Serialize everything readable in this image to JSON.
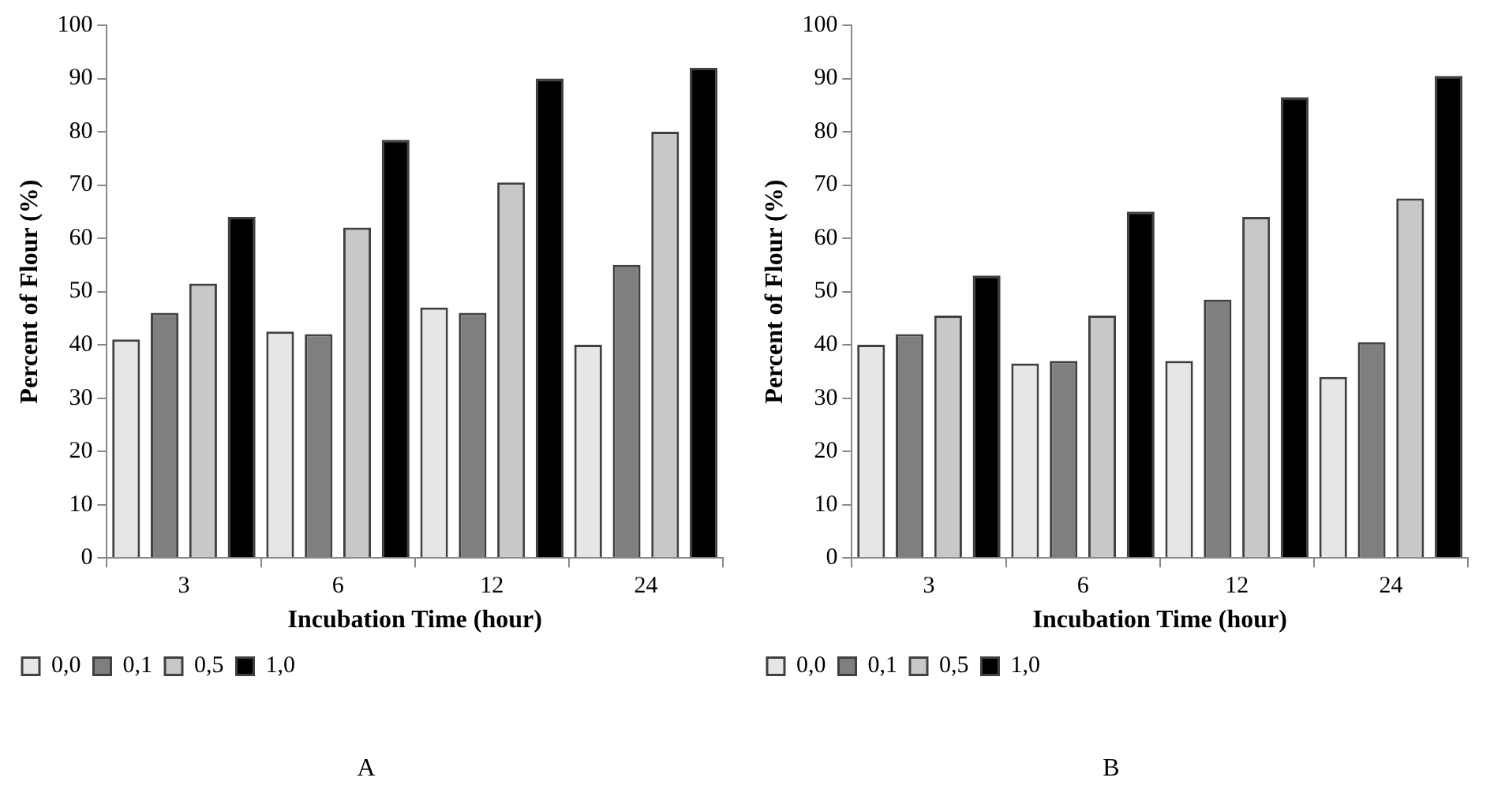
{
  "chart_data": [
    {
      "type": "bar",
      "title": "A",
      "xlabel": "Incubation Time (hour)",
      "ylabel": "Percent of Flour (%)",
      "categories": [
        "3",
        "6",
        "12",
        "24"
      ],
      "series": [
        {
          "name": "0,0",
          "color": "#e6e6e6",
          "values": [
            41,
            42.5,
            47,
            40
          ]
        },
        {
          "name": "0,1",
          "color": "#7f7f7f",
          "values": [
            46,
            42,
            46,
            55
          ]
        },
        {
          "name": "0,5",
          "color": "#c8c8c8",
          "values": [
            51.5,
            62,
            70.5,
            80
          ]
        },
        {
          "name": "1,0",
          "color": "#000000",
          "values": [
            64,
            78.5,
            90,
            92
          ]
        }
      ],
      "ylim": [
        0,
        100
      ],
      "yticks": [
        0,
        10,
        20,
        30,
        40,
        50,
        60,
        70,
        80,
        90,
        100
      ],
      "grid": false,
      "legend": "bottom"
    },
    {
      "type": "bar",
      "title": "B",
      "xlabel": "Incubation Time (hour)",
      "ylabel": "Percent of Flour (%)",
      "categories": [
        "3",
        "6",
        "12",
        "24"
      ],
      "series": [
        {
          "name": "0,0",
          "color": "#e6e6e6",
          "values": [
            40,
            36.5,
            37,
            34
          ]
        },
        {
          "name": "0,1",
          "color": "#7f7f7f",
          "values": [
            42,
            37,
            48.5,
            40.5
          ]
        },
        {
          "name": "0,5",
          "color": "#c8c8c8",
          "values": [
            45.5,
            45.5,
            64,
            67.5
          ]
        },
        {
          "name": "1,0",
          "color": "#000000",
          "values": [
            53,
            65,
            86.5,
            90.5
          ]
        }
      ],
      "ylim": [
        0,
        100
      ],
      "yticks": [
        0,
        10,
        20,
        30,
        40,
        50,
        60,
        70,
        80,
        90,
        100
      ],
      "grid": false,
      "legend": "bottom"
    }
  ]
}
